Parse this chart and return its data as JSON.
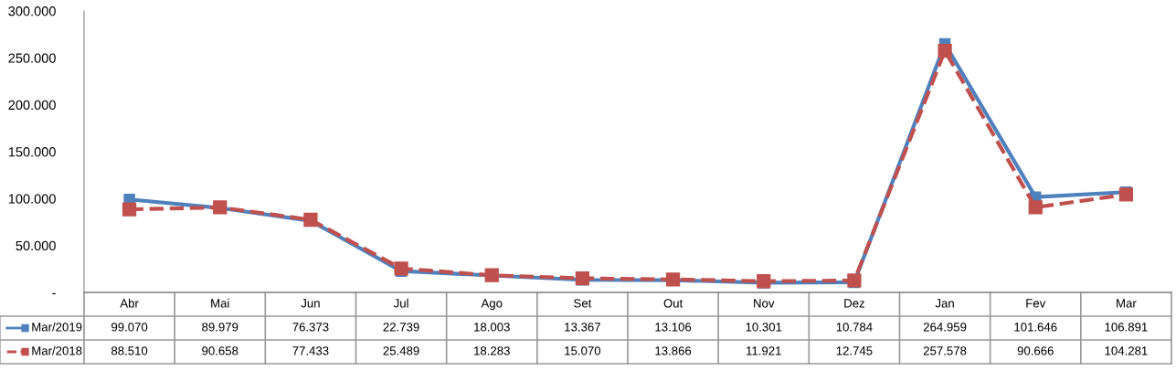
{
  "chart_data": {
    "type": "line",
    "categories": [
      "Abr",
      "Mai",
      "Jun",
      "Jul",
      "Ago",
      "Set",
      "Out",
      "Nov",
      "Dez",
      "Jan",
      "Fev",
      "Mar"
    ],
    "series": [
      {
        "name": "Mar/2019",
        "color": "#4f81bd",
        "line_style": "solid",
        "marker": "square",
        "values": [
          99070,
          89979,
          76373,
          22739,
          18003,
          13367,
          13106,
          10301,
          10784,
          264959,
          101646,
          106891
        ],
        "value_labels": [
          "99.070",
          "89.979",
          "76.373",
          "22.739",
          "18.003",
          "13.367",
          "13.106",
          "10.301",
          "10.784",
          "264.959",
          "101.646",
          "106.891"
        ]
      },
      {
        "name": "Mar/2018",
        "color": "#c0504d",
        "line_style": "dashed",
        "marker": "square",
        "values": [
          88510,
          90658,
          77433,
          25489,
          18283,
          15070,
          13866,
          11921,
          12745,
          257578,
          90666,
          104281
        ],
        "value_labels": [
          "88.510",
          "90.658",
          "77.433",
          "25.489",
          "18.283",
          "15.070",
          "13.866",
          "11.921",
          "12.745",
          "257.578",
          "90.666",
          "104.281"
        ]
      }
    ],
    "ylim": [
      0,
      300000
    ],
    "yticks": [
      {
        "value": 0,
        "label": "-"
      },
      {
        "value": 50000,
        "label": "50.000"
      },
      {
        "value": 100000,
        "label": "100.000"
      },
      {
        "value": 150000,
        "label": "150.000"
      },
      {
        "value": 200000,
        "label": "200.000"
      },
      {
        "value": 250000,
        "label": "250.000"
      },
      {
        "value": 300000,
        "label": "300.000"
      }
    ],
    "grid": false,
    "legend": "bottom left"
  }
}
